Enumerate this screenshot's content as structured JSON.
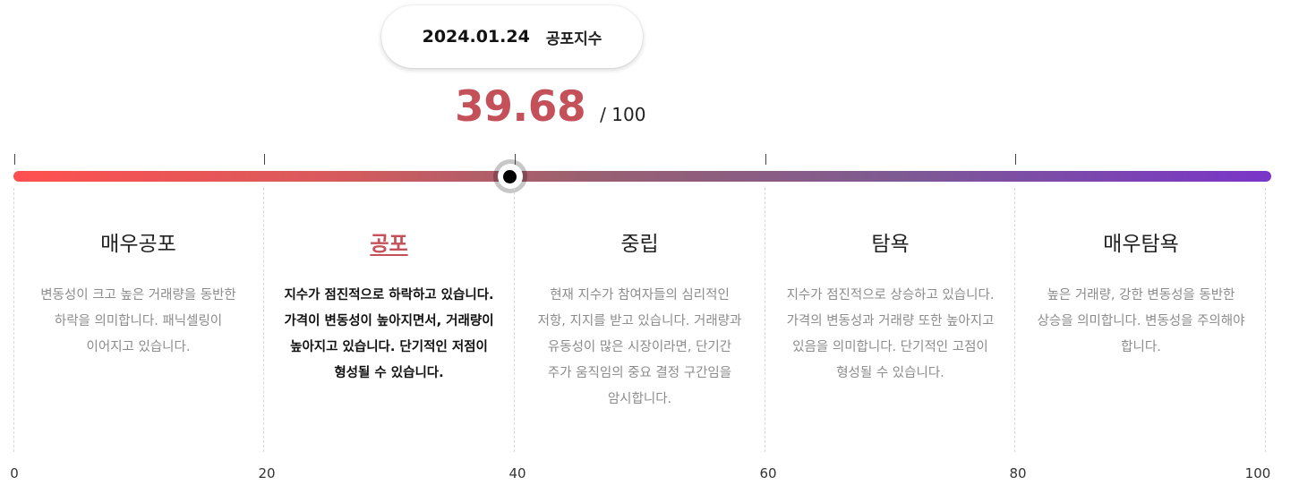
{
  "tooltip": {
    "date": "2024.01.24",
    "label": "공포지수"
  },
  "score": {
    "value": 39.68,
    "value_text": "39.68",
    "max_text": "/ 100"
  },
  "gauge": {
    "min": 0,
    "max": 100,
    "current": 39.68,
    "gradient_start": "#ff5050",
    "gradient_end": "#7a35c8",
    "accent": "#c4515a"
  },
  "zones": [
    {
      "title": "매우공포",
      "active": false,
      "desc": "변동성이 크고 높은 거래량을 동반한 하락을 의미합니다. 패닉셀링이 이어지고 있습니다."
    },
    {
      "title": "공포",
      "active": true,
      "desc": "지수가 점진적으로 하락하고 있습니다. 가격이 변동성이 높아지면서, 거래량이 높아지고 있습니다. 단기적인 저점이 형성될 수 있습니다."
    },
    {
      "title": "중립",
      "active": false,
      "desc": "현재 지수가 참여자들의 심리적인 저항, 지지를 받고 있습니다. 거래량과 유동성이 많은 시장이라면, 단기간 주가 움직임의 중요 결정 구간임을 암시합니다."
    },
    {
      "title": "탐욕",
      "active": false,
      "desc": "지수가 점진적으로 상승하고 있습니다. 가격의 변동성과 거래량 또한 높아지고 있음을 의미합니다. 단기적인 고점이 형성될 수 있습니다."
    },
    {
      "title": "매우탐욕",
      "active": false,
      "desc": "높은 거래량, 강한 변동성을 동반한 상승을 의미합니다. 변동성을 주의해야 합니다."
    }
  ],
  "axis": [
    "0",
    "20",
    "40",
    "60",
    "80",
    "100"
  ]
}
